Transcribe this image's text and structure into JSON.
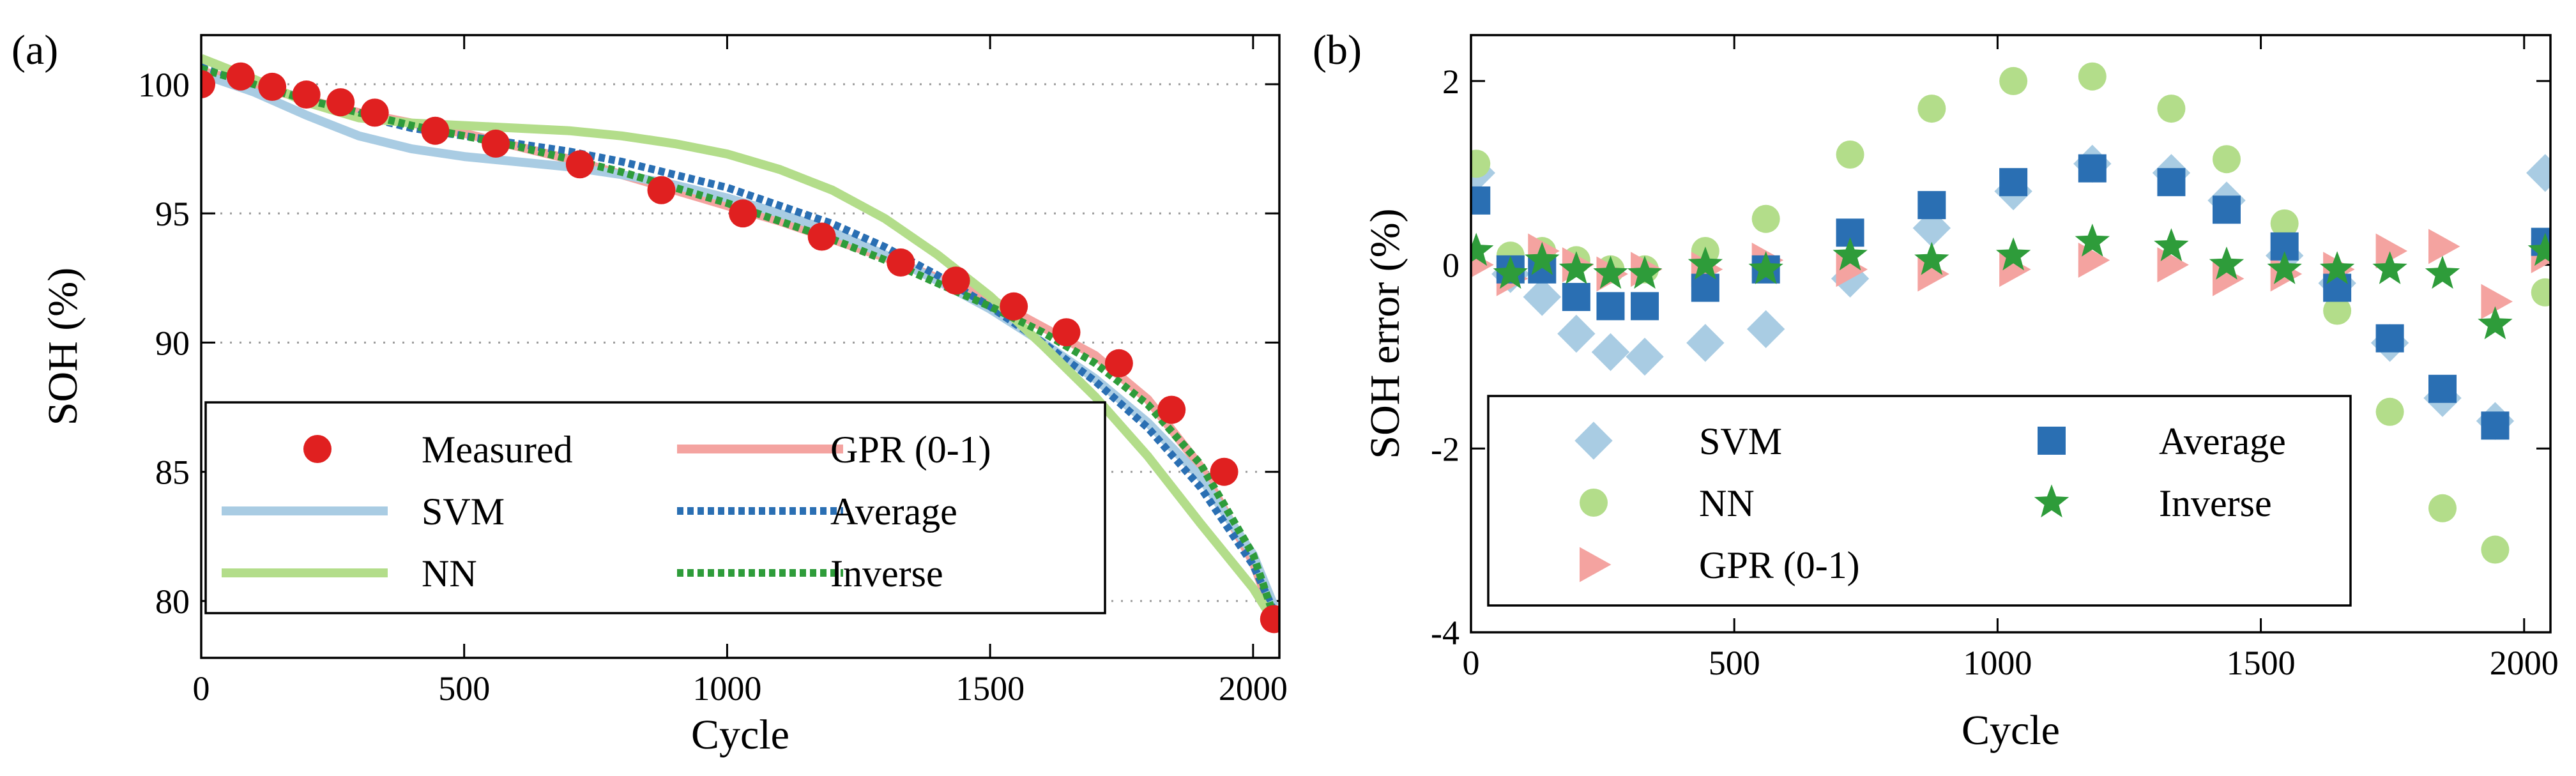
{
  "chart_data": [
    {
      "type": "line",
      "panel_label": "(a)",
      "xlabel": "Cycle",
      "ylabel": "SOH (%)",
      "xlim": [
        0,
        2050
      ],
      "ylim": [
        77.8,
        101.9
      ],
      "xticks": [
        0,
        500,
        1000,
        1500,
        2000
      ],
      "yticks": [
        80,
        85,
        90,
        95,
        100
      ],
      "grid": "horizontal dotted at y ticks",
      "legend_position": "bottom-left",
      "series": [
        {
          "name": "Measured",
          "style": "marker",
          "color": "#e02020",
          "x": [
            0,
            75,
            135,
            200,
            265,
            330,
            445,
            560,
            720,
            875,
            1030,
            1180,
            1330,
            1435,
            1545,
            1645,
            1745,
            1845,
            1945,
            2040
          ],
          "y": [
            100.0,
            100.3,
            99.9,
            99.6,
            99.3,
            98.9,
            98.2,
            97.7,
            96.9,
            95.9,
            95.0,
            94.1,
            93.1,
            92.4,
            91.4,
            90.4,
            89.2,
            87.4,
            85.0,
            79.3
          ]
        },
        {
          "name": "GPR (0-1)",
          "style": "line",
          "color": "#f4a3a0",
          "x": [
            0,
            100,
            200,
            300,
            400,
            500,
            600,
            700,
            800,
            900,
            1000,
            1100,
            1200,
            1300,
            1400,
            1500,
            1600,
            1700,
            1800,
            1900,
            2000,
            2040
          ],
          "y": [
            100.5,
            100.0,
            99.4,
            98.9,
            98.5,
            98.1,
            97.6,
            97.1,
            96.5,
            95.9,
            95.3,
            94.7,
            94.0,
            93.3,
            92.5,
            91.7,
            90.6,
            89.5,
            87.8,
            85.2,
            81.5,
            79.3
          ]
        },
        {
          "name": "SVM",
          "style": "line",
          "color": "#a9cce3",
          "x": [
            0,
            100,
            200,
            300,
            400,
            500,
            600,
            700,
            800,
            900,
            1000,
            1100,
            1200,
            1300,
            1400,
            1500,
            1600,
            1700,
            1800,
            1900,
            2000,
            2040
          ],
          "y": [
            100.4,
            99.7,
            98.8,
            98.0,
            97.5,
            97.2,
            97.0,
            96.8,
            96.5,
            96.1,
            95.6,
            95.0,
            94.3,
            93.4,
            92.4,
            91.3,
            90.0,
            88.6,
            86.9,
            84.8,
            81.8,
            79.8
          ]
        },
        {
          "name": "Average",
          "style": "dotted",
          "color": "#2a6fb3",
          "x": [
            0,
            100,
            200,
            300,
            400,
            500,
            600,
            700,
            800,
            900,
            1000,
            1100,
            1200,
            1300,
            1400,
            1500,
            1600,
            1700,
            1800,
            1900,
            2000,
            2040
          ],
          "y": [
            100.7,
            100.1,
            99.4,
            98.8,
            98.3,
            98.0,
            97.7,
            97.4,
            97.0,
            96.5,
            96.0,
            95.3,
            94.6,
            93.7,
            92.6,
            91.4,
            90.0,
            88.5,
            86.7,
            84.4,
            81.4,
            79.6
          ]
        },
        {
          "name": "NN",
          "style": "line",
          "color": "#b3dd8a",
          "x": [
            0,
            100,
            200,
            300,
            400,
            500,
            600,
            700,
            800,
            900,
            1000,
            1100,
            1200,
            1300,
            1400,
            1500,
            1600,
            1700,
            1800,
            1900,
            2000,
            2040
          ],
          "y": [
            101.0,
            100.2,
            99.3,
            98.7,
            98.5,
            98.4,
            98.3,
            98.2,
            98.0,
            97.7,
            97.3,
            96.7,
            95.9,
            94.8,
            93.4,
            91.8,
            89.9,
            87.9,
            85.6,
            83.0,
            80.5,
            79.2
          ]
        },
        {
          "name": "Inverse",
          "style": "dotted",
          "color": "#2e9c3a",
          "x": [
            0,
            100,
            200,
            300,
            400,
            500,
            600,
            700,
            800,
            900,
            1000,
            1100,
            1200,
            1300,
            1400,
            1500,
            1600,
            1700,
            1800,
            1900,
            2000,
            2040
          ],
          "y": [
            100.6,
            100.0,
            99.4,
            98.9,
            98.4,
            98.0,
            97.6,
            97.1,
            96.6,
            96.0,
            95.4,
            94.7,
            94.0,
            93.2,
            92.3,
            91.4,
            90.4,
            89.2,
            87.6,
            85.3,
            81.8,
            79.4
          ]
        }
      ],
      "legend": [
        {
          "name": "Measured",
          "col": 0,
          "row": 0
        },
        {
          "name": "GPR (0-1)",
          "col": 1,
          "row": 0
        },
        {
          "name": "SVM",
          "col": 0,
          "row": 1
        },
        {
          "name": "Average",
          "col": 1,
          "row": 1
        },
        {
          "name": "NN",
          "col": 0,
          "row": 2
        },
        {
          "name": "Inverse",
          "col": 1,
          "row": 2
        }
      ]
    },
    {
      "type": "scatter",
      "panel_label": "(b)",
      "xlabel": "Cycle",
      "ylabel": "SOH error (%)",
      "xlim": [
        0,
        2050
      ],
      "ylim": [
        -4,
        2.5
      ],
      "xticks": [
        0,
        500,
        1000,
        1500,
        2000
      ],
      "yticks": [
        -4,
        -2,
        0,
        2
      ],
      "grid": "off",
      "legend_position": "bottom-left",
      "x": [
        10,
        75,
        135,
        200,
        265,
        330,
        445,
        560,
        720,
        875,
        1030,
        1180,
        1330,
        1435,
        1545,
        1645,
        1745,
        1845,
        1945,
        2040
      ],
      "series": [
        {
          "name": "SVM",
          "marker": "diamond",
          "color": "#a9cce3",
          "values": [
            1.0,
            -0.1,
            -0.35,
            -0.75,
            -0.95,
            -1.0,
            -0.85,
            -0.7,
            -0.15,
            0.4,
            0.8,
            1.1,
            1.0,
            0.7,
            0.1,
            -0.2,
            -0.85,
            -1.45,
            -1.7,
            1.0
          ]
        },
        {
          "name": "NN",
          "marker": "circle",
          "color": "#b3dd8a",
          "values": [
            1.1,
            0.1,
            0.15,
            0.05,
            -0.05,
            -0.05,
            0.15,
            0.5,
            1.2,
            1.7,
            2.0,
            2.05,
            1.7,
            1.15,
            0.45,
            -0.5,
            -1.6,
            -2.65,
            -3.1,
            -0.3
          ]
        },
        {
          "name": "GPR (0-1)",
          "marker": "triangle-right",
          "color": "#f4a3a0",
          "values": [
            0.0,
            -0.15,
            0.15,
            0.0,
            -0.1,
            -0.05,
            -0.05,
            0.05,
            -0.05,
            -0.1,
            -0.05,
            0.05,
            0.0,
            -0.15,
            -0.1,
            -0.05,
            0.15,
            0.2,
            -0.4,
            0.1
          ]
        },
        {
          "name": "Average",
          "marker": "square",
          "color": "#2a6fb3",
          "values": [
            0.7,
            -0.05,
            -0.05,
            -0.35,
            -0.45,
            -0.45,
            -0.25,
            -0.05,
            0.35,
            0.65,
            0.9,
            1.05,
            0.9,
            0.6,
            0.2,
            -0.25,
            -0.8,
            -1.35,
            -1.75,
            0.25
          ]
        },
        {
          "name": "Inverse",
          "marker": "star",
          "color": "#2e9c3a",
          "values": [
            0.15,
            -0.1,
            0.05,
            -0.05,
            -0.1,
            -0.1,
            0.0,
            -0.05,
            0.1,
            0.05,
            0.1,
            0.25,
            0.2,
            0.0,
            -0.05,
            -0.05,
            -0.05,
            -0.1,
            -0.65,
            0.15
          ]
        }
      ],
      "legend": [
        {
          "name": "SVM",
          "col": 0,
          "row": 0
        },
        {
          "name": "Average",
          "col": 1,
          "row": 0
        },
        {
          "name": "NN",
          "col": 0,
          "row": 1
        },
        {
          "name": "Inverse",
          "col": 1,
          "row": 1
        },
        {
          "name": "GPR (0-1)",
          "col": 0,
          "row": 2
        }
      ]
    }
  ]
}
